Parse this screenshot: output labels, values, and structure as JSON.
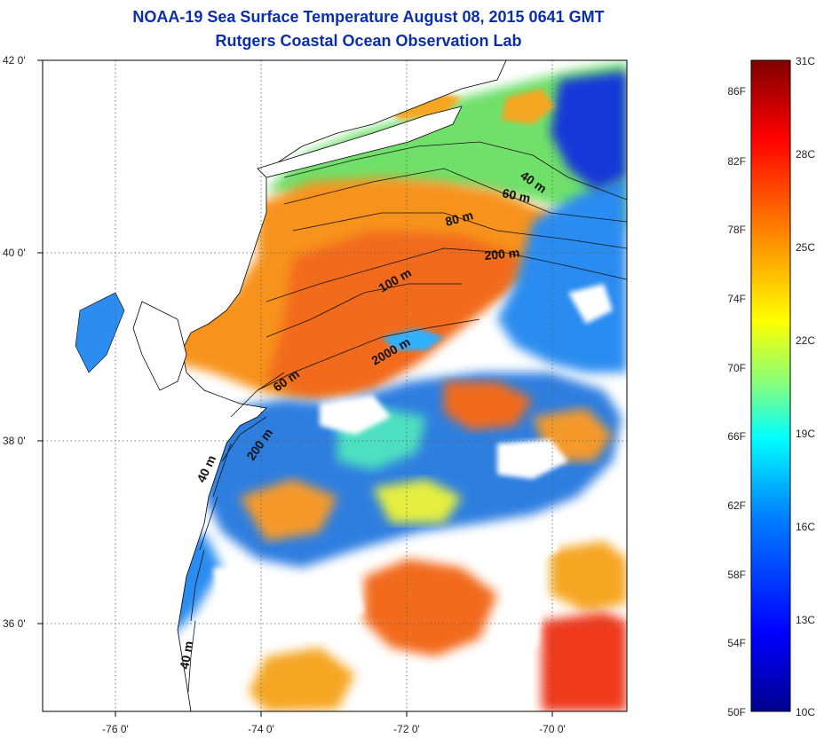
{
  "title_line1": "NOAA-19 Sea Surface Temperature August 08, 2015 0641 GMT",
  "title_line2": "Rutgers Coastal Ocean Observation Lab",
  "map": {
    "x_ticks": [
      {
        "label": "-76 0'"
      },
      {
        "label": "-74 0'"
      },
      {
        "label": "-72 0'"
      },
      {
        "label": "-70 0'"
      }
    ],
    "y_ticks": [
      {
        "label": "42 0'"
      },
      {
        "label": "40 0'"
      },
      {
        "label": "38 0'"
      },
      {
        "label": "36 0'"
      }
    ],
    "contour_labels": [
      "40 m",
      "60 m",
      "80 m",
      "200 m",
      "100 m",
      "2000 m",
      "60 m",
      "200 m",
      "40 m",
      "40 m"
    ],
    "grid": true
  },
  "colorbar": {
    "fahrenheit_labels": [
      "86F",
      "82F",
      "78F",
      "74F",
      "70F",
      "66F",
      "62F",
      "58F",
      "54F",
      "50F"
    ],
    "celsius_labels": [
      "31C",
      "28C",
      "25C",
      "22C",
      "19C",
      "16C",
      "13C",
      "10C"
    ],
    "colors": [
      "#00008f",
      "#0000ff",
      "#0080ff",
      "#00ffff",
      "#80ff80",
      "#ffff00",
      "#ff8000",
      "#ff0000",
      "#800000"
    ]
  },
  "palette": {
    "title_color": "#0b2fa8",
    "land_color": "#ffffff",
    "coastline_color": "#000000"
  }
}
